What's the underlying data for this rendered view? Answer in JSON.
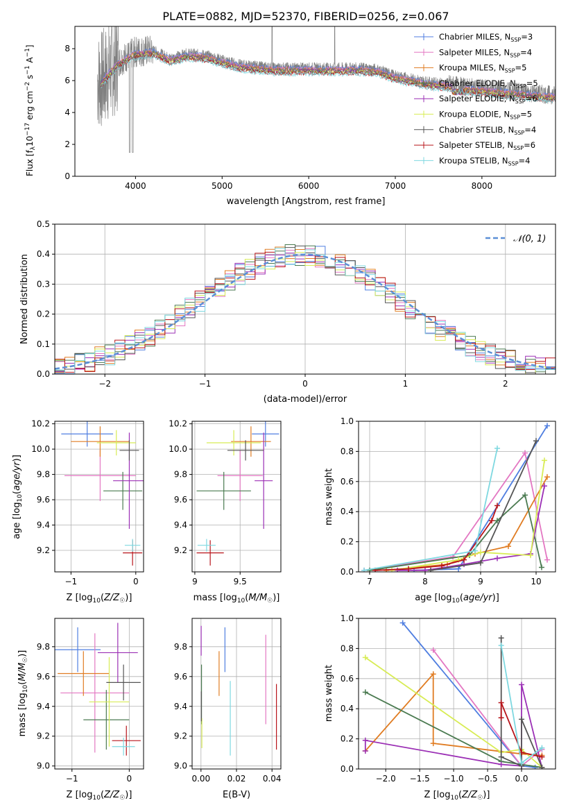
{
  "figure": {
    "title": "PLATE=0882, MJD=52370, FIBERID=0256, z=0.067",
    "series": [
      {
        "name": "Chabrier MILES, N_SSP=3",
        "color": "#4f7ee0"
      },
      {
        "name": "Salpeter MILES, N_SSP=4",
        "color": "#e377c2"
      },
      {
        "name": "Kroupa MILES, N_SSP=5",
        "color": "#e07c22"
      },
      {
        "name": "Chabrier ELODIE, N_SSP=5",
        "color": "#4a7a50"
      },
      {
        "name": "Salpeter ELODIE, N_SSP=6",
        "color": "#9b2fb5"
      },
      {
        "name": "Kroupa ELODIE, N_SSP=5",
        "color": "#d8ec55"
      },
      {
        "name": "Chabrier STELIB, N_SSP=4",
        "color": "#555555"
      },
      {
        "name": "Salpeter STELIB, N_SSP=6",
        "color": "#b8141a"
      },
      {
        "name": "Kroupa STELIB, N_SSP=4",
        "color": "#7ed8e0"
      }
    ]
  },
  "chart_data": [
    {
      "id": "spectrum",
      "type": "line",
      "xlabel": "wavelength [Angstrom, rest frame]",
      "ylabel": "Flux [f_λ 10^-17 erg cm^-2 s^-1 A^-1]",
      "xlim": [
        3300,
        8850
      ],
      "ylim": [
        0,
        9.4
      ],
      "xticks": [
        4000,
        5000,
        6000,
        7000,
        8000
      ],
      "yticks": [
        0,
        2,
        4,
        6,
        8
      ],
      "legend": "top-right",
      "grid": false,
      "observed_color": "#808080",
      "x": [
        3600,
        3800,
        4000,
        4200,
        4400,
        4600,
        4800,
        5000,
        5200,
        5400,
        5600,
        5800,
        6000,
        6200,
        6400,
        6600,
        6800,
        7000,
        7200,
        7400,
        7600,
        7800,
        8000,
        8200,
        8400,
        8600,
        8800
      ],
      "y": [
        6.0,
        7.2,
        7.8,
        7.9,
        7.4,
        7.7,
        7.6,
        7.3,
        7.0,
        6.9,
        6.8,
        6.8,
        6.8,
        6.8,
        6.8,
        6.8,
        6.7,
        6.3,
        6.1,
        5.9,
        5.8,
        5.6,
        5.5,
        5.4,
        5.3,
        5.2,
        5.1
      ]
    },
    {
      "id": "residuals",
      "type": "histogram",
      "xlabel": "(data-model)/error",
      "ylabel": "Normed distribution",
      "xlim": [
        -2.5,
        2.5
      ],
      "ylim": [
        0,
        0.5
      ],
      "xticks": [
        -2,
        -1,
        0,
        1,
        2
      ],
      "yticks": [
        0.0,
        0.1,
        0.2,
        0.3,
        0.4,
        0.5
      ],
      "legend": "top-right",
      "legend_entry": "𝒩(0, 1)",
      "gaussian_color": "#5b8fd6",
      "grid": true,
      "bin_edges": [
        -2.5,
        -2.4,
        -2.3,
        -2.2,
        -2.1,
        -2.0,
        -1.9,
        -1.8,
        -1.7,
        -1.6,
        -1.5,
        -1.4,
        -1.3,
        -1.2,
        -1.1,
        -1.0,
        -0.9,
        -0.8,
        -0.7,
        -0.6,
        -0.5,
        -0.4,
        -0.3,
        -0.2,
        -0.1,
        0.0,
        0.1,
        0.2,
        0.3,
        0.4,
        0.5,
        0.6,
        0.7,
        0.8,
        0.9,
        1.0,
        1.1,
        1.2,
        1.3,
        1.4,
        1.5,
        1.6,
        1.7,
        1.8,
        1.9,
        2.0,
        2.1,
        2.2,
        2.3,
        2.4,
        2.5
      ]
    },
    {
      "id": "age-vs-Z",
      "type": "errorbar",
      "xlabel": "Z [log10(Z/Z☉)]",
      "ylabel": "age [log10(age/yr)]",
      "xlim": [
        -1.25,
        0.12
      ],
      "ylim": [
        9.03,
        10.22
      ],
      "xticks": [
        -1,
        0
      ],
      "yticks": [
        9.2,
        9.4,
        9.6,
        9.8,
        10.0,
        10.2
      ],
      "grid": true,
      "points": [
        {
          "series": 0,
          "x": -0.75,
          "xerr": 0.4,
          "y": 10.12,
          "yerr": 0.1
        },
        {
          "series": 1,
          "x": -0.55,
          "xerr": 0.55,
          "y": 9.79,
          "yerr": 0.2
        },
        {
          "series": 2,
          "x": -0.55,
          "xerr": 0.45,
          "y": 10.06,
          "yerr": 0.12
        },
        {
          "series": 3,
          "x": -0.2,
          "xerr": 0.3,
          "y": 9.67,
          "yerr": 0.15
        },
        {
          "series": 4,
          "x": -0.1,
          "xerr": 0.25,
          "y": 9.75,
          "yerr": 0.38
        },
        {
          "series": 5,
          "x": -0.3,
          "xerr": 0.3,
          "y": 10.05,
          "yerr": 0.1
        },
        {
          "series": 6,
          "x": -0.1,
          "xerr": 0.15,
          "y": 9.99,
          "yerr": 0.08
        },
        {
          "series": 7,
          "x": -0.05,
          "xerr": 0.15,
          "y": 9.18,
          "yerr": 0.1
        },
        {
          "series": 8,
          "x": -0.05,
          "xerr": 0.12,
          "y": 9.24,
          "yerr": 0.05
        }
      ]
    },
    {
      "id": "age-vs-mass",
      "type": "errorbar",
      "xlabel": "mass [log10(M/M☉)]",
      "xlim": [
        8.97,
        9.95
      ],
      "ylim": [
        9.03,
        10.22
      ],
      "xticks": [
        9.0,
        9.5
      ],
      "yticks": [
        9.2,
        9.4,
        9.6,
        9.8,
        10.0,
        10.2
      ],
      "grid": true,
      "points": [
        {
          "series": 0,
          "x": 9.78,
          "xerr": 0.15,
          "y": 10.12,
          "yerr": 0.1
        },
        {
          "series": 1,
          "x": 9.5,
          "xerr": 0.25,
          "y": 9.79,
          "yerr": 0.2
        },
        {
          "series": 2,
          "x": 9.62,
          "xerr": 0.22,
          "y": 10.06,
          "yerr": 0.12
        },
        {
          "series": 3,
          "x": 9.32,
          "xerr": 0.3,
          "y": 9.67,
          "yerr": 0.15
        },
        {
          "series": 4,
          "x": 9.76,
          "xerr": 0.1,
          "y": 9.75,
          "yerr": 0.38
        },
        {
          "series": 5,
          "x": 9.43,
          "xerr": 0.3,
          "y": 10.05,
          "yerr": 0.1
        },
        {
          "series": 6,
          "x": 9.56,
          "xerr": 0.2,
          "y": 9.99,
          "yerr": 0.08
        },
        {
          "series": 7,
          "x": 9.17,
          "xerr": 0.15,
          "y": 9.18,
          "yerr": 0.1
        },
        {
          "series": 8,
          "x": 9.13,
          "xerr": 0.1,
          "y": 9.24,
          "yerr": 0.05
        }
      ]
    },
    {
      "id": "weight-vs-age",
      "type": "line",
      "xlabel": "age [log10(age/yr)]",
      "ylabel": "mass weight",
      "xlim": [
        6.8,
        10.35
      ],
      "ylim": [
        0,
        1
      ],
      "xticks": [
        7,
        8,
        9,
        10
      ],
      "yticks": [
        0.0,
        0.2,
        0.4,
        0.6,
        0.8,
        1.0
      ],
      "grid": true,
      "series": [
        {
          "series": 0,
          "x": [
            7.8,
            8.6,
            10.2
          ],
          "y": [
            0.01,
            0.02,
            0.97
          ]
        },
        {
          "series": 1,
          "x": [
            6.9,
            8.5,
            9.8,
            10.2
          ],
          "y": [
            0.01,
            0.1,
            0.79,
            0.08
          ]
        },
        {
          "series": 2,
          "x": [
            7.3,
            8.4,
            8.9,
            9.5,
            10.2
          ],
          "y": [
            0.01,
            0.05,
            0.12,
            0.17,
            0.63
          ]
        },
        {
          "series": 3,
          "x": [
            7.0,
            8.8,
            9.3,
            9.8,
            10.1
          ],
          "y": [
            0.01,
            0.11,
            0.34,
            0.51,
            0.03
          ]
        },
        {
          "series": 4,
          "x": [
            7.5,
            8.0,
            8.7,
            9.3,
            9.9,
            10.15
          ],
          "y": [
            0.01,
            0.01,
            0.05,
            0.09,
            0.12,
            0.57
          ]
        },
        {
          "series": 5,
          "x": [
            7.4,
            8.6,
            9.0,
            9.9,
            10.15
          ],
          "y": [
            0.01,
            0.08,
            0.13,
            0.11,
            0.74
          ]
        },
        {
          "series": 6,
          "x": [
            8.1,
            9.0,
            10.0
          ],
          "y": [
            0.01,
            0.06,
            0.87
          ]
        },
        {
          "series": 7,
          "x": [
            7.1,
            7.7,
            8.3,
            8.7,
            9.2,
            9.3
          ],
          "y": [
            0.01,
            0.02,
            0.04,
            0.08,
            0.34,
            0.44
          ]
        },
        {
          "series": 8,
          "x": [
            6.9,
            8.9,
            9.3
          ],
          "y": [
            0.01,
            0.14,
            0.82
          ]
        }
      ]
    },
    {
      "id": "mass-vs-Z",
      "type": "errorbar",
      "xlabel": "Z [log10(Z/Z☉)]",
      "ylabel": "mass [log10(M/M☉)]",
      "xlim": [
        -1.3,
        0.25
      ],
      "ylim": [
        8.98,
        9.99
      ],
      "xticks": [
        -1,
        0
      ],
      "yticks": [
        9.0,
        9.2,
        9.4,
        9.6,
        9.8
      ],
      "grid": true,
      "points": [
        {
          "series": 0,
          "x": -0.9,
          "xerr": 0.4,
          "y": 9.78,
          "yerr": 0.15
        },
        {
          "series": 1,
          "x": -0.6,
          "xerr": 0.6,
          "y": 9.49,
          "yerr": 0.4
        },
        {
          "series": 2,
          "x": -0.8,
          "xerr": 0.45,
          "y": 9.62,
          "yerr": 0.15
        },
        {
          "series": 3,
          "x": -0.4,
          "xerr": 0.4,
          "y": 9.31,
          "yerr": 0.2
        },
        {
          "series": 4,
          "x": -0.2,
          "xerr": 0.35,
          "y": 9.76,
          "yerr": 0.2
        },
        {
          "series": 5,
          "x": -0.35,
          "xerr": 0.35,
          "y": 9.43,
          "yerr": 0.3
        },
        {
          "series": 6,
          "x": -0.1,
          "xerr": 0.3,
          "y": 9.56,
          "yerr": 0.12
        },
        {
          "series": 7,
          "x": -0.05,
          "xerr": 0.25,
          "y": 9.17,
          "yerr": 0.1
        },
        {
          "series": 8,
          "x": -0.1,
          "xerr": 0.2,
          "y": 9.13,
          "yerr": 0.06
        }
      ]
    },
    {
      "id": "mass-vs-ebv",
      "type": "errorbar",
      "xlabel": "E(B-V)",
      "xlim": [
        -0.005,
        0.045
      ],
      "ylim": [
        8.98,
        9.99
      ],
      "xticks": [
        0.0,
        0.02,
        0.04
      ],
      "yticks": [
        9.0,
        9.2,
        9.4,
        9.6,
        9.8
      ],
      "grid": true,
      "points": [
        {
          "series": 0,
          "x": 0.0135,
          "y": 9.78,
          "yerr": 0.15
        },
        {
          "series": 1,
          "x": 0.0365,
          "y": 9.58,
          "yerr": 0.3
        },
        {
          "series": 2,
          "x": 0.0102,
          "y": 9.62,
          "yerr": 0.15
        },
        {
          "series": 3,
          "x": 0.0003,
          "y": 9.48,
          "yerr": 0.2
        },
        {
          "series": 4,
          "x": 0.0001,
          "y": 9.84,
          "yerr": 0.1
        },
        {
          "series": 5,
          "x": 0.0005,
          "y": 9.22,
          "yerr": 0.1
        },
        {
          "series": 6,
          "x": 0.0002,
          "y": 9.4,
          "yerr": 0.1
        },
        {
          "series": 7,
          "x": 0.0425,
          "y": 9.33,
          "yerr": 0.22
        },
        {
          "series": 8,
          "x": 0.0165,
          "y": 9.32,
          "yerr": 0.25
        }
      ]
    },
    {
      "id": "weight-vs-Z",
      "type": "line",
      "xlabel": "Z [log10(Z/Z☉)]",
      "ylabel": "mass weight",
      "xlim": [
        -2.4,
        0.5
      ],
      "ylim": [
        0,
        1
      ],
      "xticks": [
        -2.0,
        -1.5,
        -1.0,
        -0.5,
        0.0
      ],
      "yticks": [
        0.0,
        0.2,
        0.4,
        0.6,
        0.8,
        1.0
      ],
      "grid": true,
      "series": [
        {
          "series": 0,
          "x": [
            -1.75,
            0.0,
            0.2
          ],
          "y": [
            0.97,
            0.02,
            0.01
          ]
        },
        {
          "series": 1,
          "x": [
            -1.3,
            0.0,
            0.3
          ],
          "y": [
            0.79,
            0.02,
            0.13
          ]
        },
        {
          "series": 2,
          "x": [
            -2.3,
            -1.3,
            -1.3,
            0.0,
            0.3
          ],
          "y": [
            0.12,
            0.63,
            0.17,
            0.1,
            0.09
          ]
        },
        {
          "series": 3,
          "x": [
            -2.3,
            -0.3,
            0.3
          ],
          "y": [
            0.51,
            0.05,
            0.01
          ]
        },
        {
          "series": 4,
          "x": [
            -2.3,
            -2.3,
            -0.3,
            0.0,
            0.0,
            0.3
          ],
          "y": [
            0.12,
            0.19,
            0.03,
            0.02,
            0.56,
            0.01
          ]
        },
        {
          "series": 5,
          "x": [
            -2.3,
            -0.3,
            0.0,
            0.3
          ],
          "y": [
            0.74,
            0.11,
            0.13,
            0.01
          ]
        },
        {
          "series": 6,
          "x": [
            -0.3,
            -0.3,
            0.0,
            0.0,
            0.3
          ],
          "y": [
            0.87,
            0.08,
            0.02,
            0.33,
            0.01
          ]
        },
        {
          "series": 7,
          "x": [
            -0.3,
            -0.3,
            0.0,
            0.3
          ],
          "y": [
            0.34,
            0.44,
            0.11,
            0.08
          ]
        },
        {
          "series": 8,
          "x": [
            -0.3,
            0.0,
            0.3
          ],
          "y": [
            0.82,
            0.04,
            0.14
          ]
        }
      ]
    }
  ]
}
